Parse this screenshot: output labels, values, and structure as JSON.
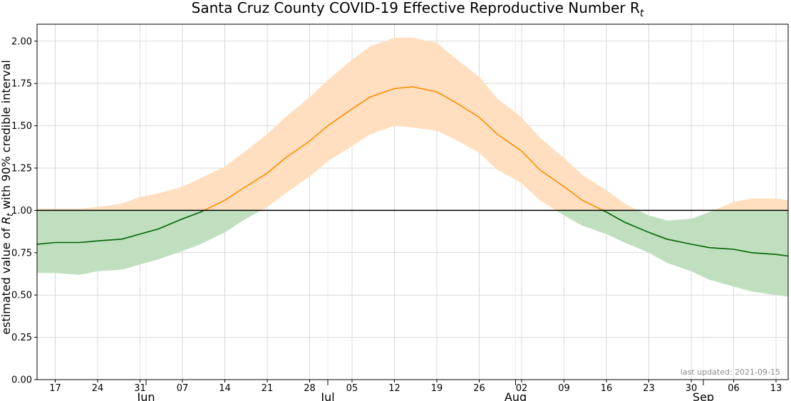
{
  "chart_data": {
    "type": "line",
    "title": "Santa Cruz County COVID-19 Effective Reproductive Number R",
    "title_subscript": "t",
    "ylabel_parts": [
      "estimated value of ",
      "R",
      "t",
      " with 90% credible interval"
    ],
    "xlabel": "",
    "ylim": [
      0.0,
      2.1
    ],
    "xlim": [
      "2021-05-14",
      "2021-09-15"
    ],
    "y_ticks": [
      "0.00",
      "0.25",
      "0.50",
      "0.75",
      "1.00",
      "1.25",
      "1.50",
      "1.75",
      "2.00"
    ],
    "x_day_ticks": [
      {
        "date": "2021-05-17",
        "label": "17"
      },
      {
        "date": "2021-05-24",
        "label": "24"
      },
      {
        "date": "2021-05-31",
        "label": "31"
      },
      {
        "date": "2021-06-07",
        "label": "07"
      },
      {
        "date": "2021-06-14",
        "label": "14"
      },
      {
        "date": "2021-06-21",
        "label": "21"
      },
      {
        "date": "2021-06-28",
        "label": "28"
      },
      {
        "date": "2021-07-05",
        "label": "05"
      },
      {
        "date": "2021-07-12",
        "label": "12"
      },
      {
        "date": "2021-07-19",
        "label": "19"
      },
      {
        "date": "2021-07-26",
        "label": "26"
      },
      {
        "date": "2021-08-02",
        "label": "02"
      },
      {
        "date": "2021-08-09",
        "label": "09"
      },
      {
        "date": "2021-08-16",
        "label": "16"
      },
      {
        "date": "2021-08-23",
        "label": "23"
      },
      {
        "date": "2021-08-30",
        "label": "30"
      },
      {
        "date": "2021-09-06",
        "label": "06"
      },
      {
        "date": "2021-09-13",
        "label": "13"
      }
    ],
    "x_month_ticks": [
      {
        "date": "2021-06-01",
        "label": "Jun"
      },
      {
        "date": "2021-07-01",
        "label": "Jul"
      },
      {
        "date": "2021-08-01",
        "label": "Aug"
      },
      {
        "date": "2021-09-01",
        "label": "Sep"
      }
    ],
    "threshold": 1.0,
    "grid": true,
    "colors": {
      "above_line": "#ff8c00",
      "above_band": "#ffdfbf",
      "below_line": "#006400",
      "below_band": "#bfdfbf",
      "threshold_line": "#000000",
      "grid": "#d9d9d9"
    },
    "series": [
      {
        "x": [
          "2021-05-14",
          "2021-05-17",
          "2021-05-21",
          "2021-05-24",
          "2021-05-28",
          "2021-05-31",
          "2021-06-03",
          "2021-06-07",
          "2021-06-10",
          "2021-06-14",
          "2021-06-17",
          "2021-06-21",
          "2021-06-24",
          "2021-06-28",
          "2021-07-01",
          "2021-07-05",
          "2021-07-08",
          "2021-07-12",
          "2021-07-15",
          "2021-07-19",
          "2021-07-22",
          "2021-07-26",
          "2021-07-29",
          "2021-08-02",
          "2021-08-05",
          "2021-08-09",
          "2021-08-12",
          "2021-08-16",
          "2021-08-19",
          "2021-08-23",
          "2021-08-26",
          "2021-08-30",
          "2021-09-02",
          "2021-09-06",
          "2021-09-09",
          "2021-09-13",
          "2021-09-15"
        ],
        "rt": [
          0.8,
          0.81,
          0.81,
          0.82,
          0.83,
          0.86,
          0.89,
          0.95,
          0.99,
          1.06,
          1.13,
          1.22,
          1.31,
          1.41,
          1.5,
          1.6,
          1.67,
          1.72,
          1.73,
          1.7,
          1.64,
          1.55,
          1.45,
          1.35,
          1.24,
          1.14,
          1.06,
          0.99,
          0.93,
          0.87,
          0.83,
          0.8,
          0.78,
          0.77,
          0.75,
          0.74,
          0.73
        ],
        "lower": [
          0.63,
          0.63,
          0.62,
          0.64,
          0.65,
          0.68,
          0.71,
          0.76,
          0.8,
          0.87,
          0.94,
          1.02,
          1.1,
          1.2,
          1.29,
          1.38,
          1.45,
          1.5,
          1.49,
          1.47,
          1.42,
          1.34,
          1.24,
          1.16,
          1.06,
          0.97,
          0.91,
          0.86,
          0.81,
          0.75,
          0.69,
          0.64,
          0.59,
          0.55,
          0.52,
          0.5,
          0.49
        ],
        "upper": [
          1.01,
          1.01,
          1.01,
          1.02,
          1.04,
          1.08,
          1.1,
          1.14,
          1.19,
          1.26,
          1.34,
          1.45,
          1.55,
          1.67,
          1.77,
          1.89,
          1.97,
          2.02,
          2.02,
          1.99,
          1.9,
          1.79,
          1.66,
          1.55,
          1.43,
          1.31,
          1.21,
          1.12,
          1.04,
          0.97,
          0.94,
          0.95,
          0.99,
          1.05,
          1.07,
          1.07,
          1.06
        ]
      }
    ],
    "annotation": "last updated: 2021-09-15"
  }
}
